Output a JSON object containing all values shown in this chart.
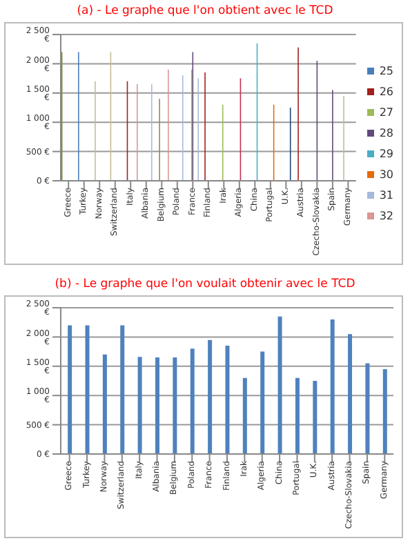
{
  "chart_data": [
    {
      "type": "bar",
      "title": "(a) - Le graphe que l'on obtient avec le TCD",
      "categories": [
        "Greece",
        "Turkey",
        "Norway",
        "Switzerland",
        "Italy",
        "Albania",
        "Belgium",
        "Poland",
        "France",
        "Finland",
        "Irak",
        "Algeria",
        "China",
        "Portugal",
        "U.K.",
        "Austria",
        "Czecho-Slovakia",
        "Spain",
        "Germany"
      ],
      "series": [
        {
          "values": [
            2200,
            null,
            null,
            null,
            null,
            null,
            null,
            null,
            null,
            null,
            null,
            null,
            null,
            null,
            null,
            null,
            null,
            null,
            null
          ],
          "color": "#77933c"
        },
        {
          "name": "25",
          "color": "#4a7ebb",
          "values": [
            null,
            2200,
            null,
            null,
            null,
            null,
            null,
            null,
            null,
            null,
            null,
            null,
            null,
            null,
            null,
            null,
            null,
            null,
            null
          ]
        },
        {
          "values": [
            null,
            null,
            1700,
            2200,
            null,
            null,
            null,
            null,
            null,
            null,
            null,
            null,
            null,
            null,
            null,
            null,
            null,
            null,
            1450
          ],
          "color": "#c4bd97"
        },
        {
          "name": "26",
          "color": "#a0201d",
          "values": [
            null,
            null,
            null,
            null,
            1700,
            null,
            null,
            null,
            null,
            1850,
            null,
            null,
            null,
            null,
            null,
            2280,
            null,
            null,
            null
          ]
        },
        {
          "values": [
            null,
            null,
            null,
            null,
            null,
            null,
            1400,
            null,
            null,
            null,
            null,
            null,
            null,
            null,
            null,
            null,
            null,
            null,
            null
          ],
          "color": "#948a54"
        },
        {
          "name": "27",
          "color": "#9bbb59",
          "values": [
            null,
            null,
            null,
            null,
            null,
            null,
            null,
            null,
            1900,
            null,
            1300,
            null,
            null,
            null,
            null,
            null,
            null,
            null,
            null
          ]
        },
        {
          "name": "28",
          "color": "#604a7b",
          "values": [
            null,
            null,
            null,
            null,
            null,
            null,
            null,
            null,
            2200,
            null,
            null,
            null,
            null,
            null,
            null,
            null,
            2050,
            1550,
            null
          ]
        },
        {
          "values": [
            null,
            null,
            null,
            null,
            null,
            null,
            null,
            null,
            null,
            null,
            null,
            1750,
            null,
            null,
            null,
            null,
            null,
            null,
            null
          ],
          "color": "#c0304d"
        },
        {
          "name": "29",
          "color": "#4bacc6",
          "values": [
            null,
            null,
            null,
            null,
            null,
            null,
            null,
            null,
            null,
            null,
            null,
            null,
            2350,
            null,
            null,
            null,
            null,
            null,
            null
          ]
        },
        {
          "name": "30",
          "color": "#e46c0a",
          "values": [
            null,
            null,
            null,
            null,
            null,
            null,
            null,
            null,
            null,
            null,
            null,
            null,
            null,
            1300,
            null,
            null,
            null,
            null,
            null
          ]
        },
        {
          "values": [
            null,
            null,
            null,
            null,
            null,
            null,
            null,
            null,
            null,
            null,
            null,
            null,
            null,
            null,
            1250,
            null,
            null,
            null,
            null
          ],
          "color": "#1f497d"
        },
        {
          "name": "31",
          "color": "#a5b9dd",
          "values": [
            null,
            null,
            null,
            null,
            null,
            1650,
            null,
            1800,
            1750,
            null,
            null,
            null,
            null,
            null,
            null,
            null,
            null,
            null,
            null
          ]
        },
        {
          "name": "32",
          "color": "#d99694",
          "values": [
            null,
            null,
            null,
            null,
            1650,
            null,
            1900,
            null,
            null,
            null,
            null,
            null,
            null,
            null,
            null,
            null,
            null,
            null,
            null
          ]
        }
      ],
      "ylim": [
        0,
        2500
      ],
      "yticks": [
        {
          "value": 0,
          "label": "0 €"
        },
        {
          "value": 500,
          "label": "500 €"
        },
        {
          "value": 1000,
          "label": "1 000 €"
        },
        {
          "value": 1500,
          "label": "1 500 €"
        },
        {
          "value": 2000,
          "label": "2 000 €"
        },
        {
          "value": 2500,
          "label": "2 500 €"
        }
      ],
      "grid": "y",
      "legend": "right"
    },
    {
      "type": "bar",
      "title": "(b) - Le graphe que l'on voulait obtenir avec le TCD",
      "categories": [
        "Greece",
        "Turkey",
        "Norway",
        "Switzerland",
        "Italy",
        "Albania",
        "Belgium",
        "Poland",
        "France",
        "Finland",
        "Irak",
        "Algeria",
        "China",
        "Portugal",
        "U.K.",
        "Austria",
        "Czecho-Slovakia",
        "Spain",
        "Germany"
      ],
      "values": [
        2200,
        2200,
        1700,
        2200,
        1660,
        1650,
        1650,
        1800,
        1950,
        1850,
        1300,
        1750,
        2350,
        1300,
        1250,
        2300,
        2050,
        1550,
        1450
      ],
      "color": "#4f81bd",
      "ylim": [
        0,
        2500
      ],
      "yticks": [
        {
          "value": 0,
          "label": "0 €"
        },
        {
          "value": 500,
          "label": "500 €"
        },
        {
          "value": 1000,
          "label": "1 000 €"
        },
        {
          "value": 1500,
          "label": "1 500 €"
        },
        {
          "value": 2000,
          "label": "2 000 €"
        },
        {
          "value": 2500,
          "label": "2 500 €"
        }
      ],
      "grid": "y"
    }
  ]
}
